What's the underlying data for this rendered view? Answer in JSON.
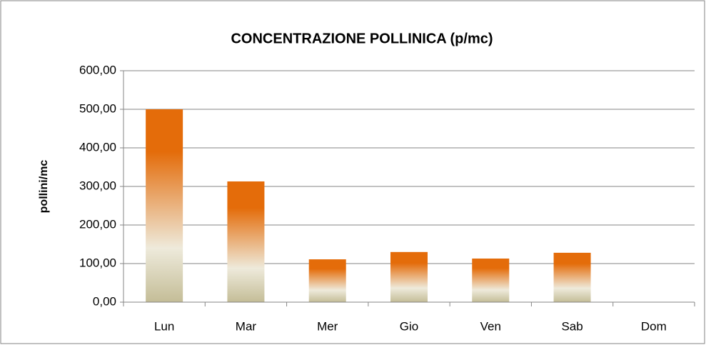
{
  "chart_data": {
    "type": "bar",
    "title": "CONCENTRAZIONE POLLINICA (p/mc)",
    "y_label": "pollini/mc",
    "categories": [
      "Lun",
      "Mar",
      "Mer",
      "Gio",
      "Ven",
      "Sab",
      "Dom"
    ],
    "values": [
      500,
      313,
      111,
      130,
      113,
      128,
      0
    ],
    "color": "#e46c0a",
    "ylim": [
      0,
      600
    ],
    "yticks": [
      {
        "value": 0,
        "label": "0,00"
      },
      {
        "value": 100,
        "label": "100,00"
      },
      {
        "value": 200,
        "label": "200,00"
      },
      {
        "value": 300,
        "label": "300,00"
      },
      {
        "value": 400,
        "label": "400,00"
      },
      {
        "value": 500,
        "label": "500,00"
      },
      {
        "value": 600,
        "label": "600,00"
      }
    ],
    "grid": true
  }
}
